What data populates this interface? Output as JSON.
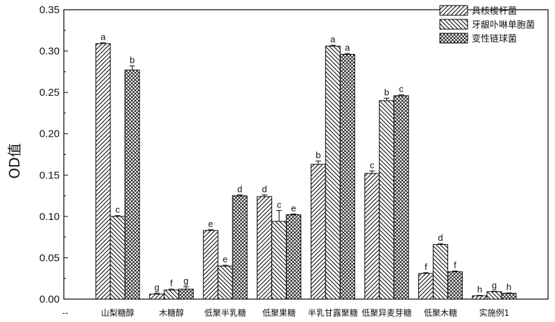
{
  "chart_data": {
    "type": "bar",
    "ylabel": "OD值",
    "xlabel": "",
    "ylim": [
      0,
      0.35
    ],
    "yticks": [
      "0.00",
      "0.05",
      "0.10",
      "0.15",
      "0.20",
      "0.25",
      "0.30",
      "0.35"
    ],
    "x_axis_left_marker": "--",
    "categories": [
      "山梨糖醇",
      "木糖醇",
      "低聚半乳糖",
      "低聚果糖",
      "半乳甘露聚糖",
      "低聚异麦芽糖",
      "低聚木糖",
      "实施例1"
    ],
    "series": [
      {
        "name": "具核梭杆菌",
        "pattern": "diagonal-forward",
        "values": [
          0.309,
          0.006,
          0.083,
          0.124,
          0.163,
          0.152,
          0.031,
          0.004
        ],
        "errors": [
          0.001,
          0.001,
          0.001,
          0.002,
          0.004,
          0.003,
          0.001,
          0.0005
        ],
        "labels": [
          "a",
          "g",
          "e",
          "d",
          "b",
          "c",
          "f",
          "h"
        ]
      },
      {
        "name": "牙龈卟啉单胞菌",
        "pattern": "diagonal-backward",
        "values": [
          0.1,
          0.011,
          0.04,
          0.094,
          0.306,
          0.24,
          0.066,
          0.009
        ],
        "errors": [
          0.001,
          0.001,
          0.001,
          0.013,
          0.001,
          0.003,
          0.001,
          0.0005
        ],
        "labels": [
          "c",
          "f",
          "e",
          "c",
          "a",
          "b",
          "d",
          "g"
        ]
      },
      {
        "name": "变性链球菌",
        "pattern": "crosshatch",
        "values": [
          0.277,
          0.012,
          0.125,
          0.102,
          0.296,
          0.246,
          0.033,
          0.007
        ],
        "errors": [
          0.005,
          0.003,
          0.001,
          0.001,
          0.001,
          0.001,
          0.001,
          0.0005
        ],
        "labels": [
          "b",
          "g",
          "d",
          "e",
          "a",
          "c",
          "f",
          "h"
        ]
      }
    ],
    "legend_position": "top-right",
    "grid": false
  }
}
